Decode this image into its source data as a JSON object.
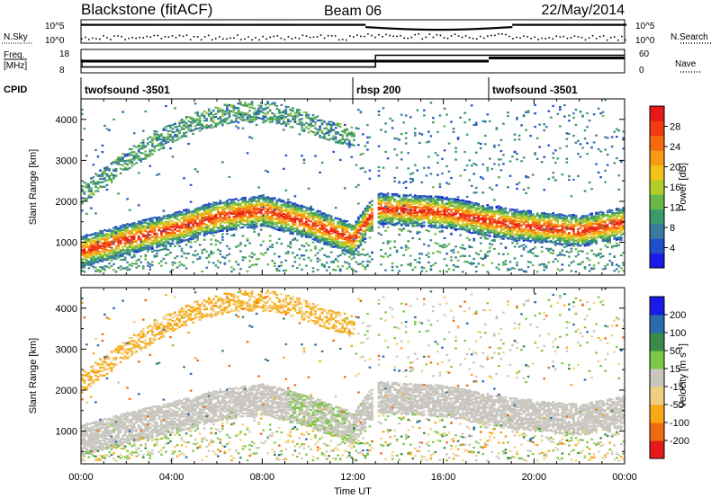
{
  "header": {
    "station": "Blackstone (fitACF)",
    "beam": "Beam 06",
    "date": "22/May/2014"
  },
  "sky_panel": {
    "left_label": "N.Sky",
    "right_label": "N.Search",
    "left_ticks": [
      "10^5",
      "10^0"
    ],
    "right_ticks": [
      "10^5",
      "10^0"
    ]
  },
  "freq_panel": {
    "left_label_top": "Freq.",
    "left_label_unit": "[MHz]",
    "left_ticks": [
      "18",
      "8"
    ],
    "right_ticks": [
      "60",
      "0"
    ],
    "right_label": "Nave",
    "freq_steps": [
      {
        "from_hour": 0,
        "to_hour": 13,
        "value": 10.5
      },
      {
        "from_hour": 13,
        "to_hour": 24,
        "value": 15.5
      }
    ],
    "nave_steps": [
      {
        "from_hour": 0,
        "to_hour": 18,
        "value": 30
      },
      {
        "from_hour": 18,
        "to_hour": 24,
        "value": 38
      }
    ]
  },
  "cpid_panel": {
    "label": "CPID",
    "segments": [
      {
        "name": "twofsound -3501",
        "start_hour": 0
      },
      {
        "name": "rbsp 200",
        "start_hour": 12
      },
      {
        "name": "twofsound -3501",
        "start_hour": 18
      }
    ]
  },
  "chart_data": [
    {
      "type": "heatmap",
      "title": "",
      "quantity": "Power",
      "xlabel": "",
      "ylabel": "Slant Range [km]",
      "xlim": [
        0,
        24
      ],
      "ylim": [
        200,
        4500
      ],
      "x_ticks": [
        "00:00",
        "04:00",
        "08:00",
        "12:00",
        "16:00",
        "20:00",
        "00:00"
      ],
      "y_ticks": [
        "1000",
        "2000",
        "3000",
        "4000"
      ],
      "colorbar": {
        "label": "Power [dB]",
        "range": [
          0,
          32
        ],
        "ticks": [
          "4",
          "8",
          "12",
          "16",
          "20",
          "24",
          "28"
        ],
        "colors": [
          "#1a1ae6",
          "#2050c8",
          "#3a7aa0",
          "#3a9a6a",
          "#6ab84a",
          "#b4cc2a",
          "#f0c418",
          "#f89a14",
          "#f86a10",
          "#f03a10",
          "#e61a1a"
        ]
      },
      "main_band": [
        {
          "hour": 0,
          "range_km": 800
        },
        {
          "hour": 2,
          "range_km": 1100
        },
        {
          "hour": 4,
          "range_km": 1350
        },
        {
          "hour": 6,
          "range_km": 1650
        },
        {
          "hour": 8,
          "range_km": 1800
        },
        {
          "hour": 10,
          "range_km": 1500
        },
        {
          "hour": 12,
          "range_km": 1100
        },
        {
          "hour": 13,
          "range_km": 1850
        },
        {
          "hour": 16,
          "range_km": 1750
        },
        {
          "hour": 19,
          "range_km": 1450
        },
        {
          "hour": 22,
          "range_km": 1300
        },
        {
          "hour": 24,
          "range_km": 1500
        }
      ]
    },
    {
      "type": "heatmap",
      "title": "",
      "quantity": "Velocity",
      "xlabel": "Time UT",
      "ylabel": "Slant Range [km]",
      "xlim": [
        0,
        24
      ],
      "ylim": [
        200,
        4500
      ],
      "x_ticks": [
        "00:00",
        "04:00",
        "08:00",
        "12:00",
        "16:00",
        "20:00",
        "00:00"
      ],
      "y_ticks": [
        "1000",
        "2000",
        "3000",
        "4000"
      ],
      "colorbar": {
        "label": "Velocity [m s^-1]",
        "values": [
          -250,
          -200,
          -100,
          -50,
          -15,
          15,
          50,
          100,
          200,
          250
        ],
        "ticks": [
          "200",
          "100",
          "50",
          "15",
          "-15",
          "-50",
          "-100",
          "-200"
        ],
        "colors": [
          "#e61a1a",
          "#f06a10",
          "#f8a814",
          "#f0d080",
          "#c8c6be",
          "#7cc844",
          "#3a8a4a",
          "#2a6ab0",
          "#1a1ae6"
        ]
      }
    }
  ]
}
